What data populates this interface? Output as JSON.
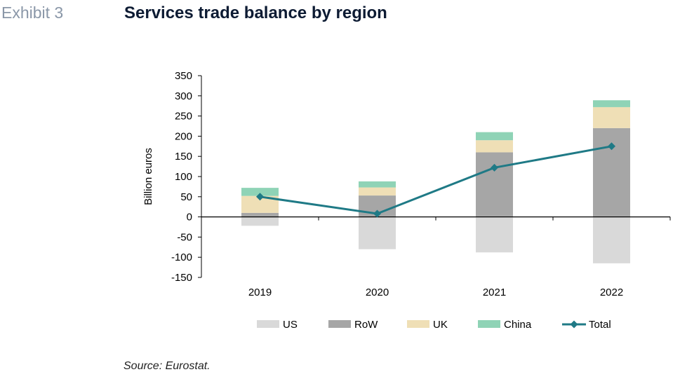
{
  "header": {
    "exhibit": "Exhibit 3",
    "title": "Services trade balance by region"
  },
  "footer": {
    "source": "Source: Eurostat."
  },
  "chart_data": {
    "type": "bar",
    "stacked": true,
    "categories": [
      "2019",
      "2020",
      "2021",
      "2022"
    ],
    "ylabel": "Billion euros",
    "ylim": [
      -150,
      350
    ],
    "yticks": [
      350,
      300,
      250,
      200,
      150,
      100,
      50,
      0,
      -50,
      -100,
      -150
    ],
    "series": [
      {
        "name": "US",
        "kind": "bar",
        "color": "#d9d9d9",
        "values": [
          -22,
          -80,
          -88,
          -115
        ]
      },
      {
        "name": "RoW",
        "kind": "bar",
        "color": "#a6a6a6",
        "values": [
          10,
          53,
          160,
          220
        ]
      },
      {
        "name": "UK",
        "kind": "bar",
        "color": "#efdfb6",
        "values": [
          42,
          20,
          30,
          52
        ]
      },
      {
        "name": "China",
        "kind": "bar",
        "color": "#8fd3b6",
        "values": [
          20,
          15,
          20,
          17
        ]
      },
      {
        "name": "Total",
        "kind": "line",
        "color": "#1f7a86",
        "values": [
          50,
          8,
          122,
          175
        ]
      }
    ],
    "legend_position": "bottom",
    "grid": false
  }
}
